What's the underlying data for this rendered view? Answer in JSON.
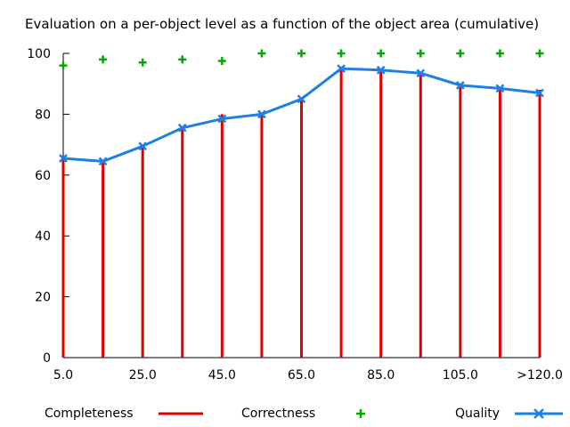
{
  "chart_data": {
    "type": "bar",
    "title": "Evaluation on a per-object level as a function of the object area (cumulative)",
    "xlabel": "",
    "ylabel": "",
    "ylim": [
      0,
      100
    ],
    "yticks": [
      0,
      20,
      40,
      60,
      80,
      100
    ],
    "categories": [
      "5.0",
      "15.0",
      "25.0",
      "35.0",
      "45.0",
      "55.0",
      "65.0",
      "75.0",
      "85.0",
      "95.0",
      "105.0",
      "115.0",
      ">120.0"
    ],
    "x_tick_labels": [
      "5.0",
      "25.0",
      "45.0",
      "65.0",
      "85.0",
      "105.0",
      ">120.0"
    ],
    "series": [
      {
        "name": "Completeness",
        "style": "impulses",
        "color": "#e00000",
        "values": [
          66,
          64.5,
          70,
          76,
          80,
          80.5,
          85.5,
          95.5,
          95,
          94,
          90,
          89,
          88
        ]
      },
      {
        "name": "Correctness",
        "style": "points",
        "color": "#00aa00",
        "values": [
          96,
          98,
          97,
          98,
          97.5,
          100,
          100,
          100,
          100,
          100,
          100,
          100,
          100
        ]
      },
      {
        "name": "Quality",
        "style": "linespoints",
        "color": "#1e7fe6",
        "values": [
          65.5,
          64.5,
          69.5,
          75.5,
          78.5,
          80,
          85,
          95,
          94.5,
          93.5,
          89.5,
          88.5,
          87
        ]
      }
    ],
    "grid": false,
    "legend_position": "bottom"
  }
}
